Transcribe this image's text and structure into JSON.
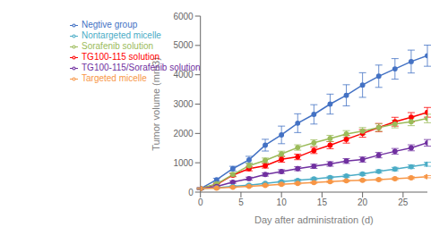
{
  "chart_data": {
    "type": "line",
    "xlabel": "Day after administration (d)",
    "ylabel": "Tumor volume (mm3)",
    "xlim": [
      0,
      28
    ],
    "ylim": [
      0,
      6000
    ],
    "xticks": [
      0,
      5,
      10,
      15,
      20,
      25
    ],
    "yticks": [
      0,
      1000,
      2000,
      3000,
      4000,
      5000,
      6000
    ],
    "grid": false,
    "legend": "upper left",
    "x": [
      0,
      2,
      4,
      6,
      8,
      10,
      12,
      14,
      16,
      18,
      20,
      22,
      24,
      26,
      28
    ],
    "series": [
      {
        "name": "Negtive group",
        "color": "#4472C4",
        "marker": "circle",
        "values": [
          120,
          420,
          800,
          1100,
          1600,
          1950,
          2350,
          2650,
          3000,
          3300,
          3650,
          3950,
          4200,
          4450,
          4650
        ],
        "yerr": [
          30,
          50,
          80,
          120,
          200,
          300,
          320,
          330,
          340,
          360,
          420,
          380,
          350,
          390,
          360
        ]
      },
      {
        "name": "TG100-115 solution",
        "color": "#FF0000",
        "marker": "circle",
        "values": [
          120,
          260,
          580,
          800,
          900,
          1120,
          1200,
          1420,
          1600,
          1800,
          2000,
          2200,
          2400,
          2550,
          2720
        ],
        "yerr": [
          25,
          35,
          55,
          75,
          80,
          100,
          95,
          105,
          120,
          130,
          130,
          140,
          150,
          160,
          165
        ]
      },
      {
        "name": "Sorafenib solution",
        "color": "#9BBB59",
        "marker": "circle",
        "values": [
          120,
          280,
          600,
          900,
          1080,
          1300,
          1520,
          1680,
          1830,
          1980,
          2080,
          2200,
          2320,
          2400,
          2510
        ],
        "yerr": [
          25,
          38,
          58,
          82,
          82,
          95,
          92,
          105,
          105,
          115,
          120,
          125,
          130,
          135,
          145
        ]
      },
      {
        "name": "TG100-115/Sorafenib solution",
        "color": "#7030A0",
        "marker": "circle",
        "values": [
          120,
          190,
          340,
          460,
          600,
          700,
          800,
          880,
          960,
          1060,
          1110,
          1260,
          1390,
          1510,
          1680
        ],
        "yerr": [
          22,
          28,
          38,
          50,
          55,
          62,
          70,
          72,
          78,
          82,
          88,
          92,
          98,
          102,
          112
        ]
      },
      {
        "name": "Nontargeted micelle",
        "color": "#4BACC6",
        "marker": "circle",
        "values": [
          120,
          148,
          195,
          238,
          295,
          355,
          400,
          448,
          500,
          550,
          615,
          705,
          785,
          865,
          950
        ],
        "yerr": [
          18,
          20,
          22,
          26,
          28,
          32,
          36,
          38,
          40,
          43,
          46,
          52,
          58,
          62,
          68
        ]
      },
      {
        "name": "Targeted micelle",
        "color": "#F79646",
        "marker": "circle",
        "values": [
          120,
          138,
          165,
          195,
          228,
          265,
          295,
          325,
          355,
          385,
          405,
          425,
          455,
          488,
          525
        ],
        "yerr": [
          18,
          20,
          20,
          22,
          23,
          26,
          26,
          28,
          28,
          30,
          30,
          32,
          33,
          36,
          38
        ]
      }
    ]
  }
}
